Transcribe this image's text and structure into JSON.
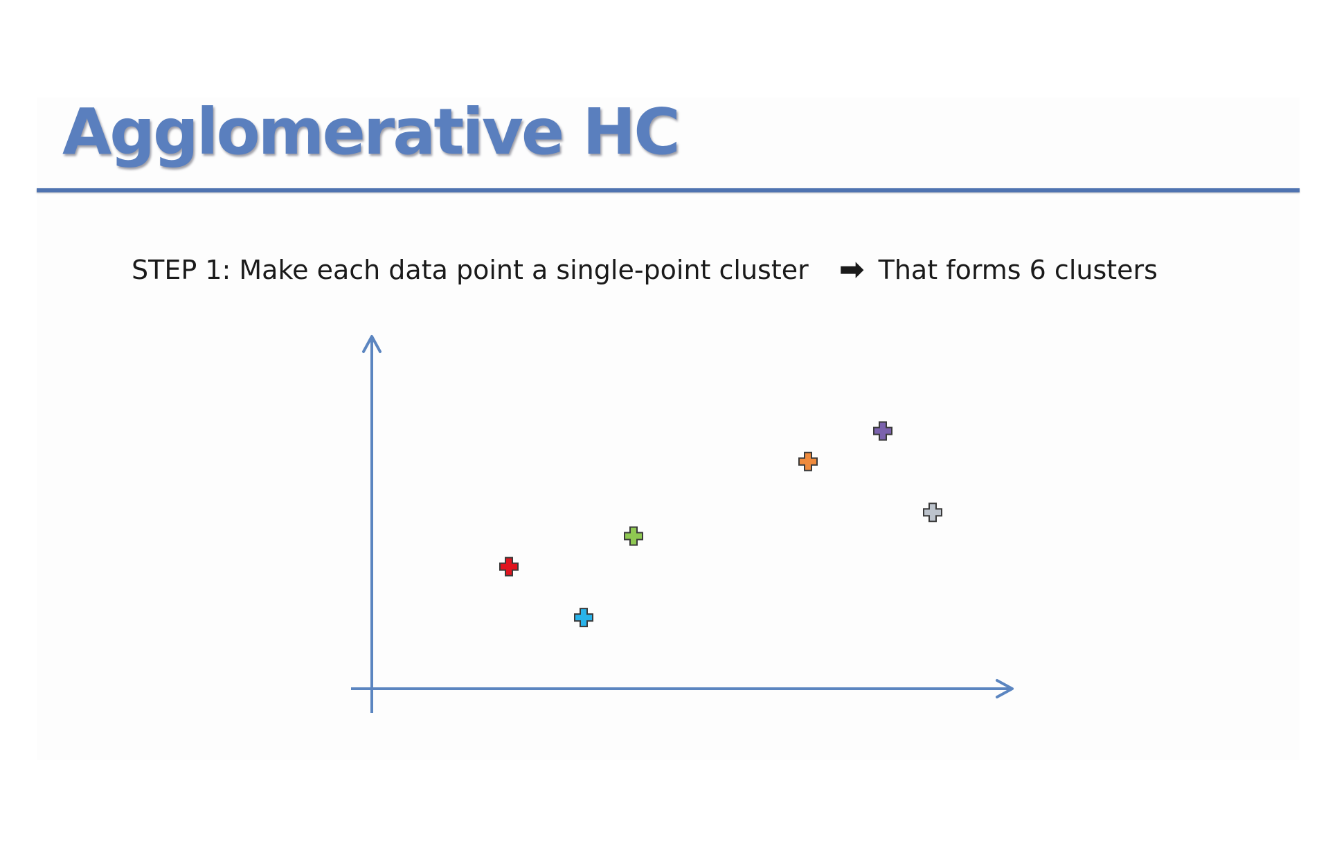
{
  "slide": {
    "title": "Agglomerative HC",
    "step_label": "STEP 1",
    "step_text": ": Make each data point a single-point cluster",
    "arrow_icon": "right-arrow-icon",
    "result_text": "That forms 6 clusters",
    "title_color": "#5a7fbe",
    "rule_color": "#4f73b0"
  },
  "chart_data": {
    "type": "scatter",
    "title": "",
    "xlabel": "",
    "ylabel": "",
    "axis_color": "#5b85c0",
    "grid": false,
    "xlim": [
      0,
      100
    ],
    "ylim": [
      0,
      100
    ],
    "series": [
      {
        "x": 11,
        "y": 36,
        "color": "#e0141e"
      },
      {
        "x": 17,
        "y": 21,
        "color": "#29b3ea"
      },
      {
        "x": 21,
        "y": 45,
        "color": "#8fc852"
      },
      {
        "x": 35,
        "y": 67,
        "color": "#ef8a3c"
      },
      {
        "x": 41,
        "y": 76,
        "color": "#7b62ad"
      },
      {
        "x": 45,
        "y": 52,
        "color": "#bcc3cc"
      }
    ]
  }
}
